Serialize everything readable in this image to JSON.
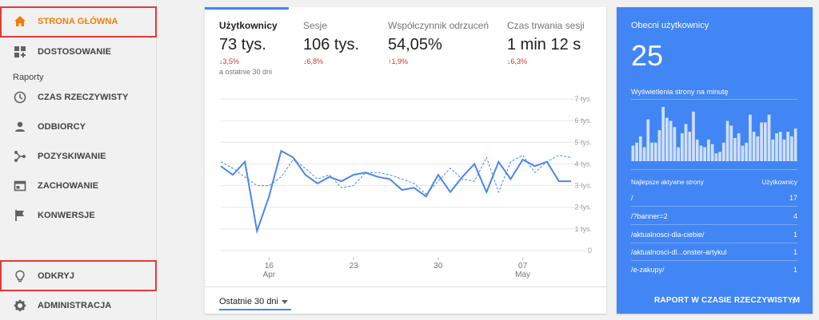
{
  "sidebar": {
    "items": [
      {
        "label": "STRONA GŁÓWNA",
        "icon": "home-icon"
      },
      {
        "label": "DOSTOSOWANIE",
        "icon": "dashboard-icon"
      },
      {
        "label": "CZAS RZECZYWISTY",
        "icon": "clock-icon"
      },
      {
        "label": "ODBIORCY",
        "icon": "person-icon"
      },
      {
        "label": "POZYSKIWANIE",
        "icon": "acquisition-icon"
      },
      {
        "label": "ZACHOWANIE",
        "icon": "behavior-icon"
      },
      {
        "label": "KONWERSJE",
        "icon": "flag-icon"
      },
      {
        "label": "ODKRYJ",
        "icon": "lightbulb-icon"
      },
      {
        "label": "ADMINISTRACJA",
        "icon": "gear-icon"
      }
    ],
    "section_label": "Raporty"
  },
  "colors": {
    "accent": "#f57c00",
    "brand_blue": "#4285f4",
    "highlight_red": "#e53935",
    "negative": "#d32f2f"
  },
  "metrics": [
    {
      "label": "Użytkownicy",
      "value": "73 tys.",
      "change": "↓3,5%",
      "sub": "a ostatnie 30 dni"
    },
    {
      "label": "Sesje",
      "value": "106 tys.",
      "change": "↓6,8%"
    },
    {
      "label": "Współczynnik odrzuceń",
      "value": "54,05%",
      "change": "↑1,9%"
    },
    {
      "label": "Czas trwania sesji",
      "value": "1 min 12 s",
      "change": "↓6,3%"
    }
  ],
  "chart_data": {
    "type": "line",
    "x_ticks": [
      {
        "label": "16",
        "sublabel": "Apr",
        "index": 4
      },
      {
        "label": "23",
        "sublabel": "",
        "index": 11
      },
      {
        "label": "30",
        "sublabel": "",
        "index": 18
      },
      {
        "label": "07",
        "sublabel": "May",
        "index": 25
      }
    ],
    "y_ticks": [
      "7 tys.",
      "6 tys.",
      "5 tys.",
      "4 tys.",
      "3 tys.",
      "2 tys.",
      "1 tys.",
      "0"
    ],
    "ylim": [
      0,
      7000
    ],
    "grid": true,
    "series": [
      {
        "style": "solid",
        "values": [
          3900,
          3500,
          4100,
          900,
          2500,
          4600,
          4300,
          3500,
          3100,
          3400,
          3200,
          3500,
          3600,
          3400,
          3300,
          2800,
          2900,
          2500,
          3500,
          2700,
          3400,
          4000,
          2700,
          4100,
          3300,
          4200,
          3900,
          4100,
          3200,
          3200
        ]
      },
      {
        "style": "dashed",
        "values": [
          4100,
          3800,
          3400,
          3000,
          3000,
          3400,
          4200,
          3800,
          3300,
          3500,
          2900,
          3000,
          3600,
          3600,
          3500,
          3300,
          3100,
          2600,
          3200,
          3800,
          3300,
          3200,
          4300,
          2700,
          4100,
          4400,
          3600,
          4100,
          4400,
          4300
        ]
      }
    ]
  },
  "footer": {
    "date_range": "Ostatnie 30 dni"
  },
  "realtime": {
    "title": "Obecni użytkownicy",
    "count": "25",
    "subtitle": "Wyświetlenia strony na minutę",
    "bars": [
      10,
      12,
      16,
      9,
      27,
      12,
      12,
      20,
      35,
      28,
      26,
      22,
      9,
      18,
      24,
      19,
      32,
      14,
      10,
      9,
      14,
      11,
      5,
      6,
      12,
      26,
      23,
      15,
      18,
      10,
      12,
      30,
      19,
      16,
      25,
      25,
      30,
      14,
      18,
      19,
      14,
      19,
      16,
      21
    ],
    "table_header": {
      "page": "Najlepsze aktywne strony",
      "users": "Użytkownicy"
    },
    "rows": [
      {
        "page": "/",
        "users": "17"
      },
      {
        "page": "/?banner=2",
        "users": "4"
      },
      {
        "page": "/aktualnosci-dla-ciebie/",
        "users": "1"
      },
      {
        "page": "/aktualnosci-dl...onster-artykul",
        "users": "1"
      },
      {
        "page": "/e-zakupy/",
        "users": "1"
      }
    ],
    "link": "RAPORT W CZASIE RZECZYWISTYM"
  }
}
